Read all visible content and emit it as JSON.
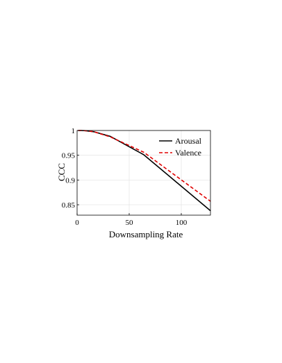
{
  "chart_data": {
    "type": "line",
    "title": "",
    "xlabel": "Downsampling Rate",
    "ylabel": "CCC",
    "xlim": [
      0,
      128
    ],
    "ylim": [
      0.829,
      1.0
    ],
    "x_ticks": [
      0,
      50,
      100
    ],
    "y_ticks": [
      0.85,
      0.9,
      0.95,
      1
    ],
    "x_tick_labels": [
      "0",
      "50",
      "100"
    ],
    "y_tick_labels": [
      "0.85",
      "0.9",
      "0.95",
      "1"
    ],
    "grid": true,
    "legend_position": "top-right",
    "series": [
      {
        "name": "Arousal",
        "color": "#000000",
        "dash": "solid",
        "x": [
          1,
          2,
          4,
          8,
          16,
          32,
          64,
          128
        ],
        "y": [
          1.0,
          1.0,
          1.0,
          0.9995,
          0.9975,
          0.988,
          0.951,
          0.838
        ]
      },
      {
        "name": "Valence",
        "color": "#e00000",
        "dash": "dashed",
        "x": [
          1,
          2,
          4,
          8,
          16,
          32,
          64,
          128
        ],
        "y": [
          1.0,
          1.0,
          1.0,
          0.9995,
          0.9975,
          0.987,
          0.956,
          0.857
        ]
      }
    ]
  }
}
